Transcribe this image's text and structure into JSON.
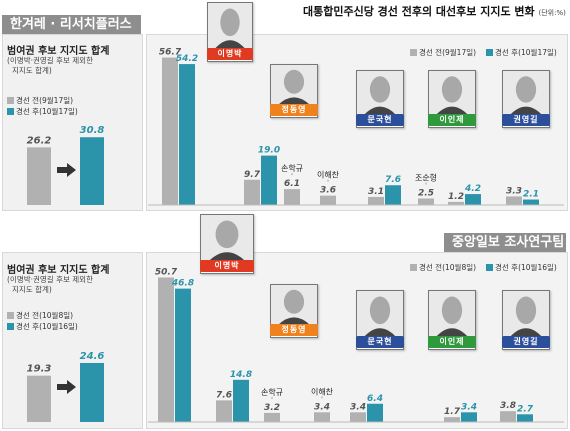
{
  "colors": {
    "before": "#b1b1b1",
    "after": "#2b94ab",
    "header": "#8e8e8e",
    "tag_red": "#e03a22",
    "tag_orange": "#f0821e",
    "tag_green": "#2f9a3c",
    "tag_blue": "#2c4f9c"
  },
  "chart_data": [
    {
      "type": "bar",
      "title": "대통합민주신당 경선 전후의 대선후보 지지도 변화",
      "unit": "(단위:%)",
      "source": "한겨레 · 리서치플러스",
      "categories": [
        "이명박",
        "정동영",
        "손학규",
        "이해찬",
        "문국현",
        "조순형",
        "이인제",
        "권영길"
      ],
      "series": [
        {
          "name": "경선 전(9월17일)",
          "values": [
            56.7,
            9.7,
            6.1,
            3.6,
            3.1,
            2.5,
            1.2,
            3.3
          ]
        },
        {
          "name": "경선 후(10월17일)",
          "values": [
            54.2,
            19.0,
            null,
            null,
            7.6,
            null,
            4.2,
            2.1
          ]
        }
      ],
      "side": {
        "title": "범여권 후보 지지도 합계",
        "note": [
          "(이명박·권영길 후보 제외한",
          "지지도 합계)"
        ],
        "legend": [
          "경선 전(9월17일)",
          "경선 후(10월17일)"
        ],
        "values": [
          26.2,
          30.8
        ]
      }
    },
    {
      "type": "bar",
      "title": "",
      "source": "중앙일보 조사연구팀",
      "categories": [
        "이명박",
        "정동영",
        "손학규",
        "이해찬",
        "문국현",
        "이인제",
        "권영길"
      ],
      "series": [
        {
          "name": "경선 전(10월8일)",
          "values": [
            50.7,
            7.6,
            3.2,
            3.4,
            3.4,
            1.7,
            3.8
          ]
        },
        {
          "name": "경선 후(10월16일)",
          "values": [
            46.8,
            14.8,
            null,
            null,
            6.4,
            3.4,
            2.7
          ]
        }
      ],
      "side": {
        "title": "범여권 후보 지지도 합계",
        "note": [
          "(이명박·권영길 후보 제외한",
          "지지도 합계)"
        ],
        "legend": [
          "경선 전(10월8일)",
          "경선 후(10월16일)"
        ],
        "values": [
          19.3,
          24.6
        ]
      }
    }
  ]
}
